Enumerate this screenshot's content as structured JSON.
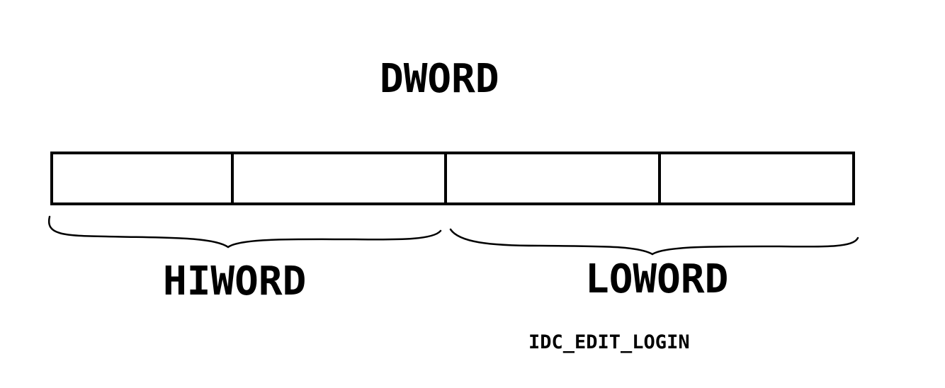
{
  "diagram": {
    "title": "DWORD",
    "groups": [
      {
        "label": "HIWORD"
      },
      {
        "label": "LOWORD"
      }
    ],
    "caption": "IDC_EDIT_LOGIN",
    "byte_cells": 4,
    "colors": {
      "stroke": "#000000",
      "background": "#ffffff"
    }
  }
}
